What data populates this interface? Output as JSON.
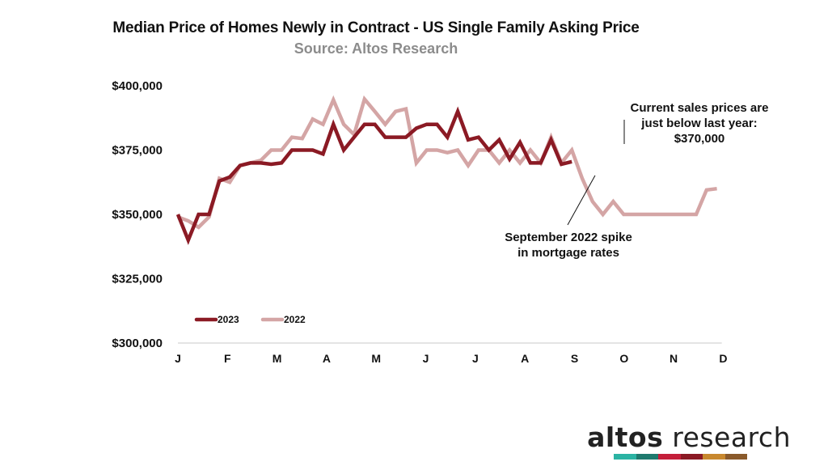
{
  "chart_data": {
    "type": "line",
    "title": "Median Price of Homes Newly in Contract - US Single Family Asking Price",
    "subtitle": "Source: Altos Research",
    "xlabel": "",
    "ylabel": "",
    "ylim": [
      300000,
      400000
    ],
    "y_ticks": [
      300000,
      325000,
      350000,
      375000,
      400000
    ],
    "y_tick_labels": [
      "$300,000",
      "$325,000",
      "$350,000",
      "$375,000",
      "$400,000"
    ],
    "x_range_weeks": [
      0,
      52
    ],
    "month_labels": [
      "J",
      "F",
      "M",
      "A",
      "M",
      "J",
      "J",
      "A",
      "S",
      "O",
      "N",
      "D"
    ],
    "month_week_positions": [
      0,
      5,
      10,
      15,
      20,
      25,
      30,
      35,
      40,
      45,
      50,
      55
    ],
    "legend_position": "bottom-left",
    "series": [
      {
        "name": "2023",
        "color": "#8b1a24",
        "x": [
          0,
          1,
          2,
          3,
          4,
          5,
          6,
          7,
          8,
          9,
          10,
          11,
          12,
          13,
          14,
          15,
          16,
          17,
          18,
          19,
          20,
          21,
          22,
          23,
          24,
          25,
          26,
          27,
          28,
          29,
          30,
          31,
          32,
          33,
          34,
          35,
          36,
          37,
          38,
          39,
          40,
          41,
          42
        ],
        "values": [
          350000,
          340000,
          350000,
          350000,
          363000,
          364500,
          369000,
          370000,
          370000,
          369500,
          370000,
          375000,
          375000,
          375000,
          373500,
          385000,
          375000,
          380000,
          385000,
          385000,
          380000,
          380000,
          380000,
          383500,
          385000,
          385000,
          380000,
          390000,
          379000,
          380000,
          375000,
          379000,
          371500,
          378000,
          370000,
          370000,
          379000,
          369500,
          370500,
          null,
          null,
          null,
          null
        ]
      },
      {
        "name": "2022",
        "color": "#d4a5a5",
        "x": [
          0,
          1,
          2,
          3,
          4,
          5,
          6,
          7,
          8,
          9,
          10,
          11,
          12,
          13,
          14,
          15,
          16,
          17,
          18,
          19,
          20,
          21,
          22,
          23,
          24,
          25,
          26,
          27,
          28,
          29,
          30,
          31,
          32,
          33,
          34,
          35,
          36,
          37,
          38,
          39,
          40,
          41,
          42,
          43,
          44,
          45,
          46,
          47,
          48,
          49,
          50,
          51,
          52
        ],
        "values": [
          349000,
          347500,
          345000,
          349000,
          364000,
          362500,
          369000,
          370000,
          371000,
          375000,
          375000,
          380000,
          379500,
          387000,
          385000,
          394500,
          385000,
          381000,
          394800,
          390000,
          385000,
          390000,
          391000,
          370000,
          375000,
          375000,
          374000,
          375000,
          369000,
          375000,
          375000,
          370000,
          375000,
          370000,
          375000,
          370000,
          380000,
          370000,
          375000,
          364000,
          355000,
          350000,
          355000,
          350000,
          350000,
          350000,
          350000,
          350000,
          350000,
          350000,
          350000,
          359500,
          360000
        ]
      }
    ],
    "annotations": [
      {
        "lines": [
          "Current sales prices are",
          "just below last year:",
          "$370,000"
        ],
        "target_week": 38.5,
        "target_value": 370000
      },
      {
        "lines": [
          "September 2022 spike",
          "in mortgage rates"
        ],
        "target_week": 39,
        "target_value": 364500
      }
    ]
  },
  "brand": {
    "word1": "altos",
    "word2": " research",
    "bar_colors": [
      "#2bb3a3",
      "#1f7a6e",
      "#c41e3a",
      "#8b1a24",
      "#c8882e",
      "#8a5a2b"
    ]
  }
}
